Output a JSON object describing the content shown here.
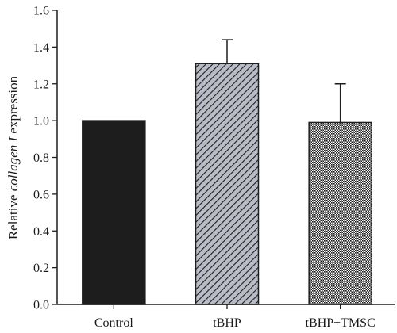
{
  "chart_data": {
    "type": "bar",
    "title": "",
    "xlabel": "",
    "ylabel": {
      "prefix": "Relative ",
      "italic": "collagen I",
      "suffix": " expression"
    },
    "ylim": [
      0,
      1.6
    ],
    "yticks": [
      "0.0",
      "0.2",
      "0.4",
      "0.6",
      "0.8",
      "1.0",
      "1.2",
      "1.4",
      "1.6"
    ],
    "grid": false,
    "categories": [
      "Control",
      "tBHP",
      "tBHP+TMSC"
    ],
    "series": [
      {
        "values": [
          1.0,
          1.31,
          0.99
        ],
        "error_upper": [
          0.0,
          0.13,
          0.21
        ],
        "fills": [
          "solid-black",
          "diagonal-hatch-gray",
          "crosshatch-dense"
        ]
      }
    ]
  },
  "colors": {
    "solid": "#1d1d1d",
    "hatch_bg": "#b9bcc6",
    "hatch_line": "#1d1d1d",
    "axis": "#1d1d1d"
  }
}
